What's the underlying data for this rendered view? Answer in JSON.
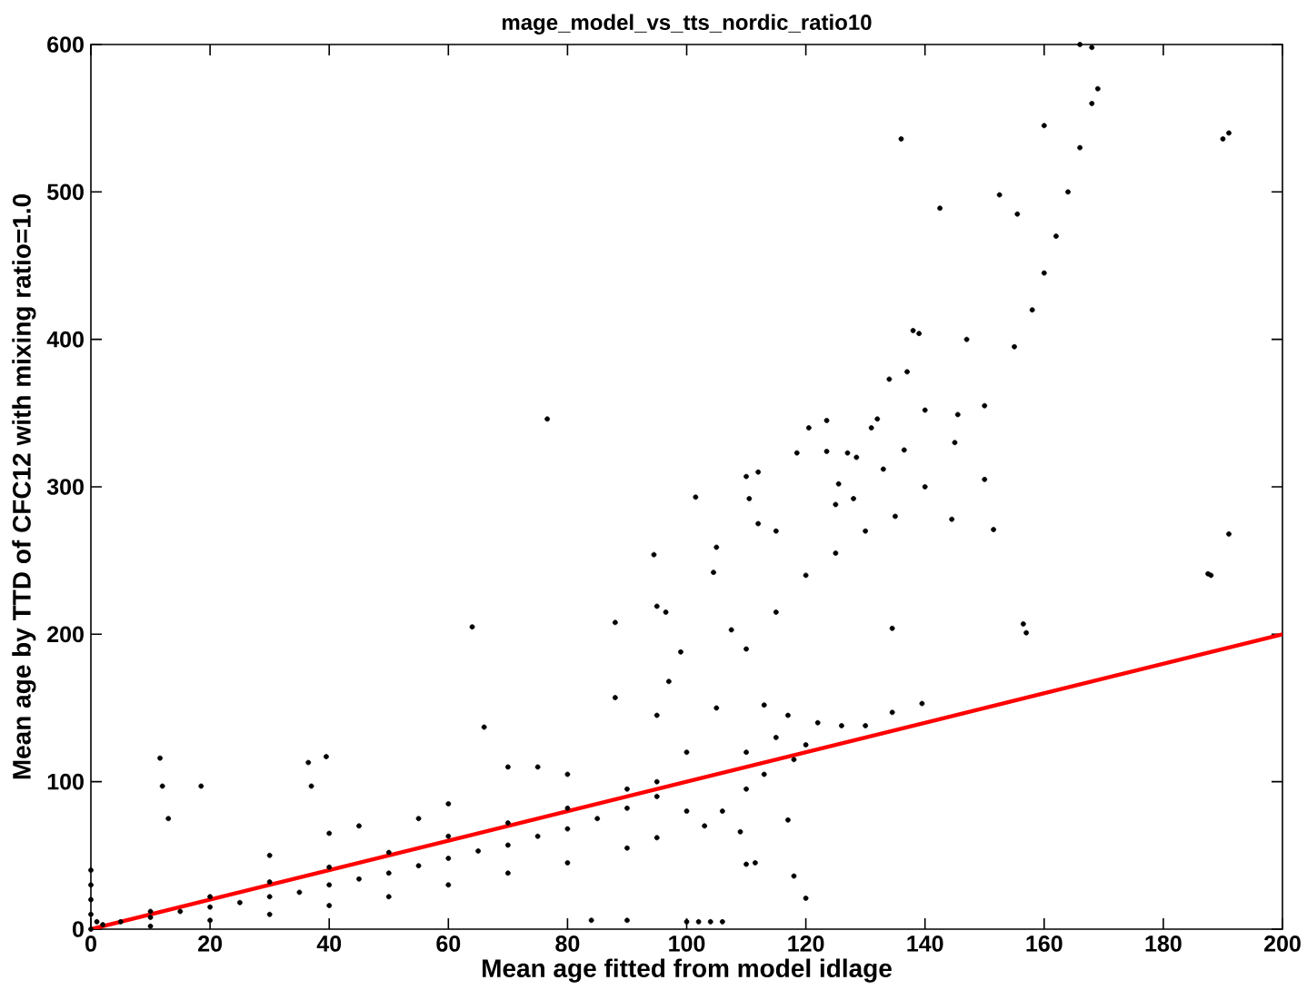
{
  "chart_data": {
    "type": "scatter",
    "title": "mage_model_vs_tts_nordic_ratio10",
    "xlabel": "Mean age fitted from model idlage",
    "ylabel": "Mean age by TTD of CFC12 with mixing ratio=1.0",
    "xlim": [
      0,
      200
    ],
    "ylim": [
      0,
      600
    ],
    "xticks": [
      0,
      20,
      40,
      60,
      80,
      100,
      120,
      140,
      160,
      180,
      200
    ],
    "yticks": [
      0,
      100,
      200,
      300,
      400,
      500,
      600
    ],
    "grid": false,
    "series": [
      {
        "marker": "circle",
        "color": "#000000",
        "x": [
          0,
          0,
          0,
          0,
          0,
          1,
          2,
          5,
          10,
          15,
          20,
          25,
          30,
          35,
          40,
          45,
          50,
          55,
          60,
          65,
          70,
          75,
          80,
          85,
          90,
          95,
          10,
          20,
          30,
          40,
          50,
          60,
          70,
          80,
          90,
          10,
          20,
          30,
          40,
          50,
          60,
          70,
          80,
          90,
          95,
          30,
          40,
          45,
          55,
          60,
          66,
          70,
          75,
          80,
          88,
          95,
          97,
          99,
          11.6,
          12,
          13,
          18.5,
          36.5,
          39.5,
          37,
          64,
          76.6,
          88,
          94.5,
          95,
          96.5,
          101.5,
          105,
          104.5,
          107.5,
          110,
          110.5,
          112,
          112,
          115,
          118.5,
          120.5,
          123.5,
          123.5,
          125.5,
          125,
          128,
          127,
          128.5,
          131,
          132,
          133,
          134,
          136,
          136.5,
          137,
          138,
          140,
          142.5,
          139,
          144.5,
          145.5,
          147,
          150,
          151.5,
          152.5,
          155.5,
          156.5,
          157,
          160,
          187.5,
          188,
          190,
          191,
          191,
          139.5,
          134.5,
          134.5,
          117,
          118,
          120,
          110,
          109,
          111.5,
          84,
          90,
          100,
          102,
          104,
          106,
          95,
          100,
          105,
          110,
          115,
          120,
          125,
          130,
          135,
          140,
          145,
          150,
          155,
          158,
          160,
          162,
          164,
          166,
          168,
          169,
          166,
          168,
          113,
          117,
          122,
          126,
          130,
          115,
          120,
          110,
          100,
          103,
          106,
          110,
          113,
          118
        ],
        "values": [
          0,
          10,
          20,
          30,
          40,
          5,
          3,
          5,
          8,
          12,
          15,
          18,
          22,
          25,
          30,
          34,
          38,
          43,
          48,
          53,
          57,
          63,
          68,
          75,
          82,
          90,
          12,
          22,
          32,
          42,
          52,
          63,
          72,
          82,
          95,
          2,
          6,
          10,
          16,
          22,
          30,
          38,
          45,
          55,
          62,
          50,
          65,
          70,
          75,
          85,
          137,
          110,
          110,
          105,
          157,
          145,
          168,
          188,
          116,
          97,
          75,
          97,
          113,
          117,
          97,
          205,
          346,
          208,
          254,
          219,
          215,
          293,
          259,
          242,
          203,
          307,
          292,
          310,
          275,
          270,
          323,
          340,
          324,
          345,
          302,
          288,
          292,
          323,
          320,
          340,
          346,
          312,
          373,
          536,
          325,
          378,
          406,
          352,
          489,
          404,
          278,
          349,
          400,
          305,
          271,
          498,
          485,
          207,
          201,
          545,
          241,
          240,
          536,
          540,
          268,
          153,
          204,
          147,
          74,
          36,
          21,
          44,
          66,
          45,
          6,
          6,
          5,
          5,
          5,
          5,
          100,
          120,
          150,
          190,
          215,
          240,
          255,
          270,
          280,
          300,
          330,
          355,
          395,
          420,
          445,
          470,
          500,
          530,
          560,
          570,
          600,
          598,
          152,
          145,
          140,
          138,
          138,
          130,
          125,
          120,
          80,
          70,
          80,
          95,
          105,
          115
        ]
      },
      {
        "type": "line",
        "marker": "none",
        "color": "#ff0000",
        "x": [
          0,
          200
        ],
        "values": [
          0,
          200
        ]
      }
    ]
  }
}
